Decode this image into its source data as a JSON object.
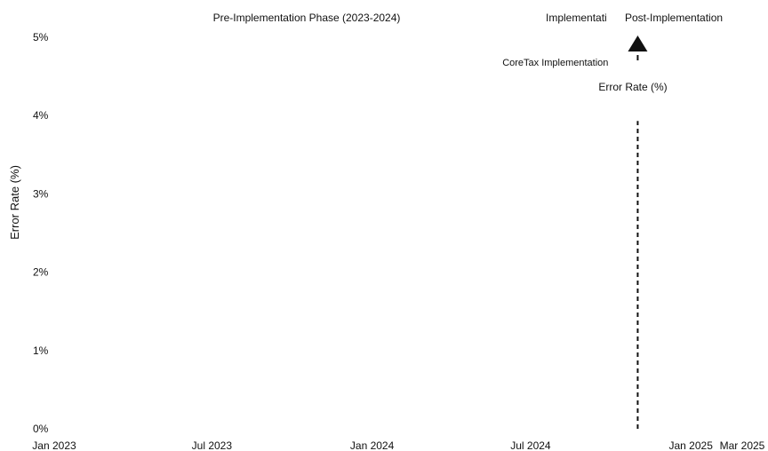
{
  "chart_data": {
    "type": "line",
    "title": "",
    "xlabel": "",
    "ylabel": "Error Rate (%)",
    "ylim": [
      0,
      5
    ],
    "yticks": [
      {
        "value": 0,
        "label": "0%"
      },
      {
        "value": 1,
        "label": "1%"
      },
      {
        "value": 2,
        "label": "2%"
      },
      {
        "value": 3,
        "label": "3%"
      },
      {
        "value": 4,
        "label": "4%"
      },
      {
        "value": 5,
        "label": "5%"
      }
    ],
    "xlim": [
      "2023-01-01",
      "2025-03-01"
    ],
    "xticks": [
      {
        "value": "2023-01-01",
        "label": "Jan 2023"
      },
      {
        "value": "2023-07-01",
        "label": "Jul 2023"
      },
      {
        "value": "2024-01-01",
        "label": "Jan 2024"
      },
      {
        "value": "2024-07-01",
        "label": "Jul 2024"
      },
      {
        "value": "2025-01-01",
        "label": "Jan 2025"
      },
      {
        "value": "2025-03-01",
        "label": "Mar 2025"
      }
    ],
    "phases": [
      {
        "label": "Pre-Implementation Phase (2023-2024)"
      },
      {
        "label": "Implementati"
      },
      {
        "label": "Post-Implementation"
      }
    ],
    "event": {
      "date": "2024-11-01",
      "label": "CoreTax Implementation",
      "line_style": "dashed",
      "marker": "up-arrow"
    },
    "series": [
      {
        "name": "Error Rate (%)",
        "values": []
      }
    ],
    "grid": false,
    "legend": "top-right"
  }
}
